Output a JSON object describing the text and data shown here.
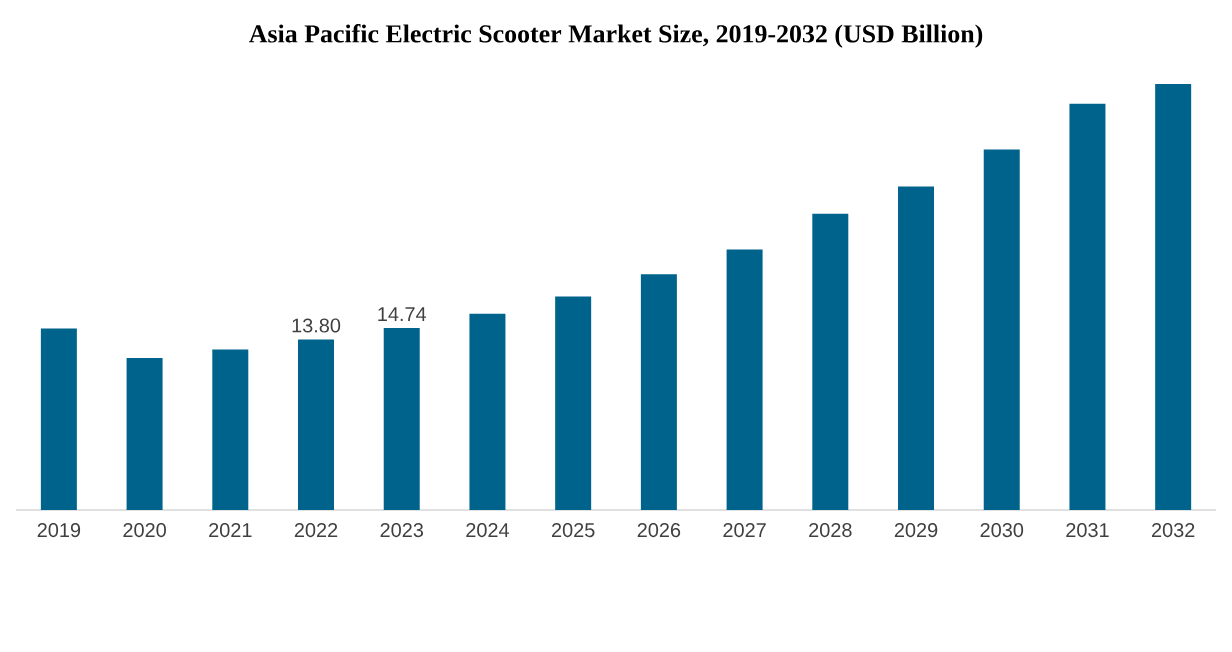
{
  "chart_data": {
    "type": "bar",
    "title": "Asia Pacific Electric Scooter Market Size, 2019-2032 (USD Billion)",
    "categories": [
      "2019",
      "2020",
      "2021",
      "2022",
      "2023",
      "2024",
      "2025",
      "2026",
      "2027",
      "2028",
      "2029",
      "2030",
      "2031",
      "2032"
    ],
    "values": [
      14.7,
      12.3,
      13.0,
      13.8,
      14.74,
      15.9,
      17.3,
      19.1,
      21.1,
      24.0,
      26.2,
      29.2,
      32.9,
      34.5
    ],
    "value_labels": [
      null,
      null,
      null,
      "13.80",
      "14.74",
      null,
      null,
      null,
      null,
      null,
      null,
      null,
      null,
      null
    ],
    "color": "#00638c"
  }
}
